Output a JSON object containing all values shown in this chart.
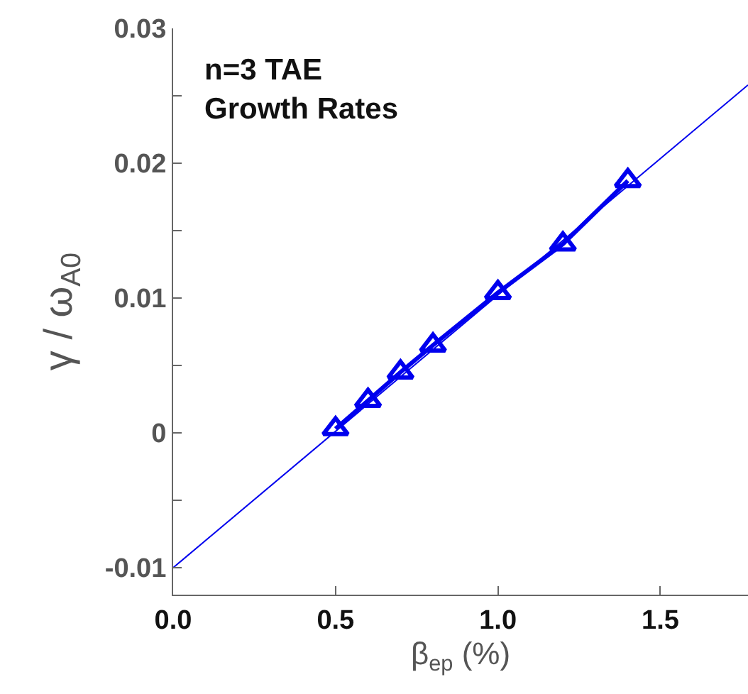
{
  "chart_data": {
    "type": "line",
    "title": "n=3 TAE\nGrowth Rates",
    "xlabel": "β$_{ep}$ (%)",
    "ylabel": "γ / ω$_{A0}$",
    "series": [
      {
        "x": [
          0.5,
          0.6,
          0.7,
          0.8,
          1.0,
          1.2,
          1.4
        ],
        "values": [
          0.0003,
          0.0024,
          0.0045,
          0.0065,
          0.0104,
          0.014,
          0.0187
        ],
        "color": "#0000ee",
        "marker": "triangle"
      },
      {
        "x": [
          0,
          1.77
        ],
        "values": [
          -0.01,
          0.0258
        ],
        "color": "#0000ee",
        "marker": "none"
      }
    ],
    "xlim": [
      0,
      1.77
    ],
    "ylim": [
      -0.012,
      0.03
    ],
    "xticks": [
      {
        "value": 0,
        "label": "0.0"
      },
      {
        "value": 0.5,
        "label": "0.5"
      },
      {
        "value": 1,
        "label": "1.0"
      },
      {
        "value": 1.5,
        "label": "1.5"
      }
    ],
    "yticks": [
      {
        "value": -0.01,
        "label": "-0.01"
      },
      {
        "value": -0.005,
        "label": null
      },
      {
        "value": 0,
        "label": "0"
      },
      {
        "value": 0.005,
        "label": null
      },
      {
        "value": 0.01,
        "label": "0.01"
      },
      {
        "value": 0.015,
        "label": null
      },
      {
        "value": 0.02,
        "label": "0.02"
      },
      {
        "value": 0.025,
        "label": null
      },
      {
        "value": 0.03,
        "label": "0.03"
      }
    ],
    "grid": false
  }
}
